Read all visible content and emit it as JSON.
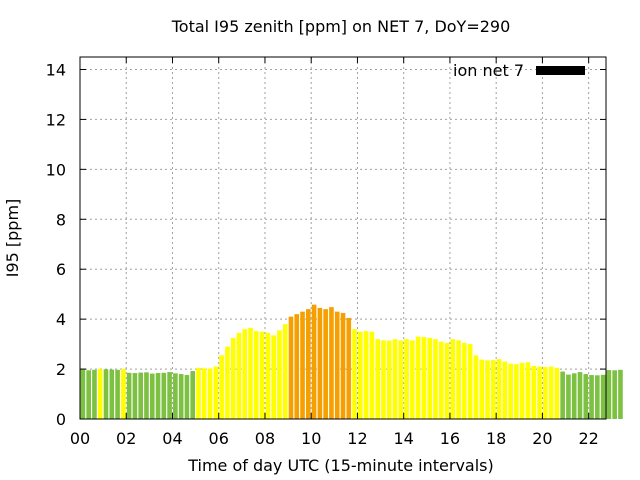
{
  "chart_data": {
    "type": "bar",
    "title": "Total I95 zenith [ppm] on NET 7, DoY=290",
    "xlabel": "Time of day UTC (15-minute intervals)",
    "ylabel": "I95 [ppm]",
    "ylim": [
      0,
      14.5
    ],
    "xlim": [
      0,
      22.75
    ],
    "grid": true,
    "legend": {
      "label": "ion net 7",
      "color": "#000000",
      "placement": "top-right"
    },
    "x_ticks": [
      {
        "value": 0,
        "label": "00"
      },
      {
        "value": 2,
        "label": "02"
      },
      {
        "value": 4,
        "label": "04"
      },
      {
        "value": 6,
        "label": "06"
      },
      {
        "value": 8,
        "label": "08"
      },
      {
        "value": 10,
        "label": "10"
      },
      {
        "value": 12,
        "label": "12"
      },
      {
        "value": 14,
        "label": "14"
      },
      {
        "value": 16,
        "label": "16"
      },
      {
        "value": 18,
        "label": "18"
      },
      {
        "value": 20,
        "label": "20"
      },
      {
        "value": 22,
        "label": "22"
      }
    ],
    "y_ticks": [
      {
        "value": 0,
        "label": "0"
      },
      {
        "value": 2,
        "label": "2"
      },
      {
        "value": 4,
        "label": "4"
      },
      {
        "value": 6,
        "label": "6"
      },
      {
        "value": 8,
        "label": "8"
      },
      {
        "value": 10,
        "label": "10"
      },
      {
        "value": 12,
        "label": "12"
      },
      {
        "value": 14,
        "label": "14"
      }
    ],
    "bar_width_hours": 0.2,
    "color_bands": [
      {
        "name": "low",
        "max": 2,
        "color": "#7dc142"
      },
      {
        "name": "moderate",
        "max": 4,
        "color": "#ffff00"
      },
      {
        "name": "elevated",
        "max": 999,
        "color": "#f5a000"
      }
    ],
    "x_start_hours": 0.125,
    "x_step_hours": 0.25,
    "values": [
      1.98,
      1.95,
      1.97,
      2.0,
      1.99,
      1.98,
      1.97,
      2.0,
      1.85,
      1.84,
      1.86,
      1.87,
      1.82,
      1.84,
      1.85,
      1.88,
      1.83,
      1.8,
      1.76,
      1.92,
      2.05,
      2.03,
      2.02,
      2.1,
      2.55,
      2.9,
      3.25,
      3.45,
      3.6,
      3.65,
      3.52,
      3.5,
      3.45,
      3.35,
      3.55,
      3.8,
      4.1,
      4.2,
      4.3,
      4.4,
      4.58,
      4.45,
      4.4,
      4.48,
      4.3,
      4.25,
      4.05,
      3.6,
      3.5,
      3.52,
      3.5,
      3.2,
      3.15,
      3.14,
      3.2,
      3.15,
      3.2,
      3.15,
      3.3,
      3.28,
      3.25,
      3.2,
      3.1,
      3.05,
      3.2,
      3.15,
      3.05,
      3.0,
      2.55,
      2.38,
      2.35,
      2.36,
      2.4,
      2.3,
      2.22,
      2.2,
      2.25,
      2.27,
      2.12,
      2.1,
      2.08,
      2.1,
      2.05,
      1.9,
      1.78,
      1.83,
      1.88,
      1.8,
      1.76,
      1.75,
      1.77,
      1.96,
      1.95,
      1.97
    ]
  }
}
